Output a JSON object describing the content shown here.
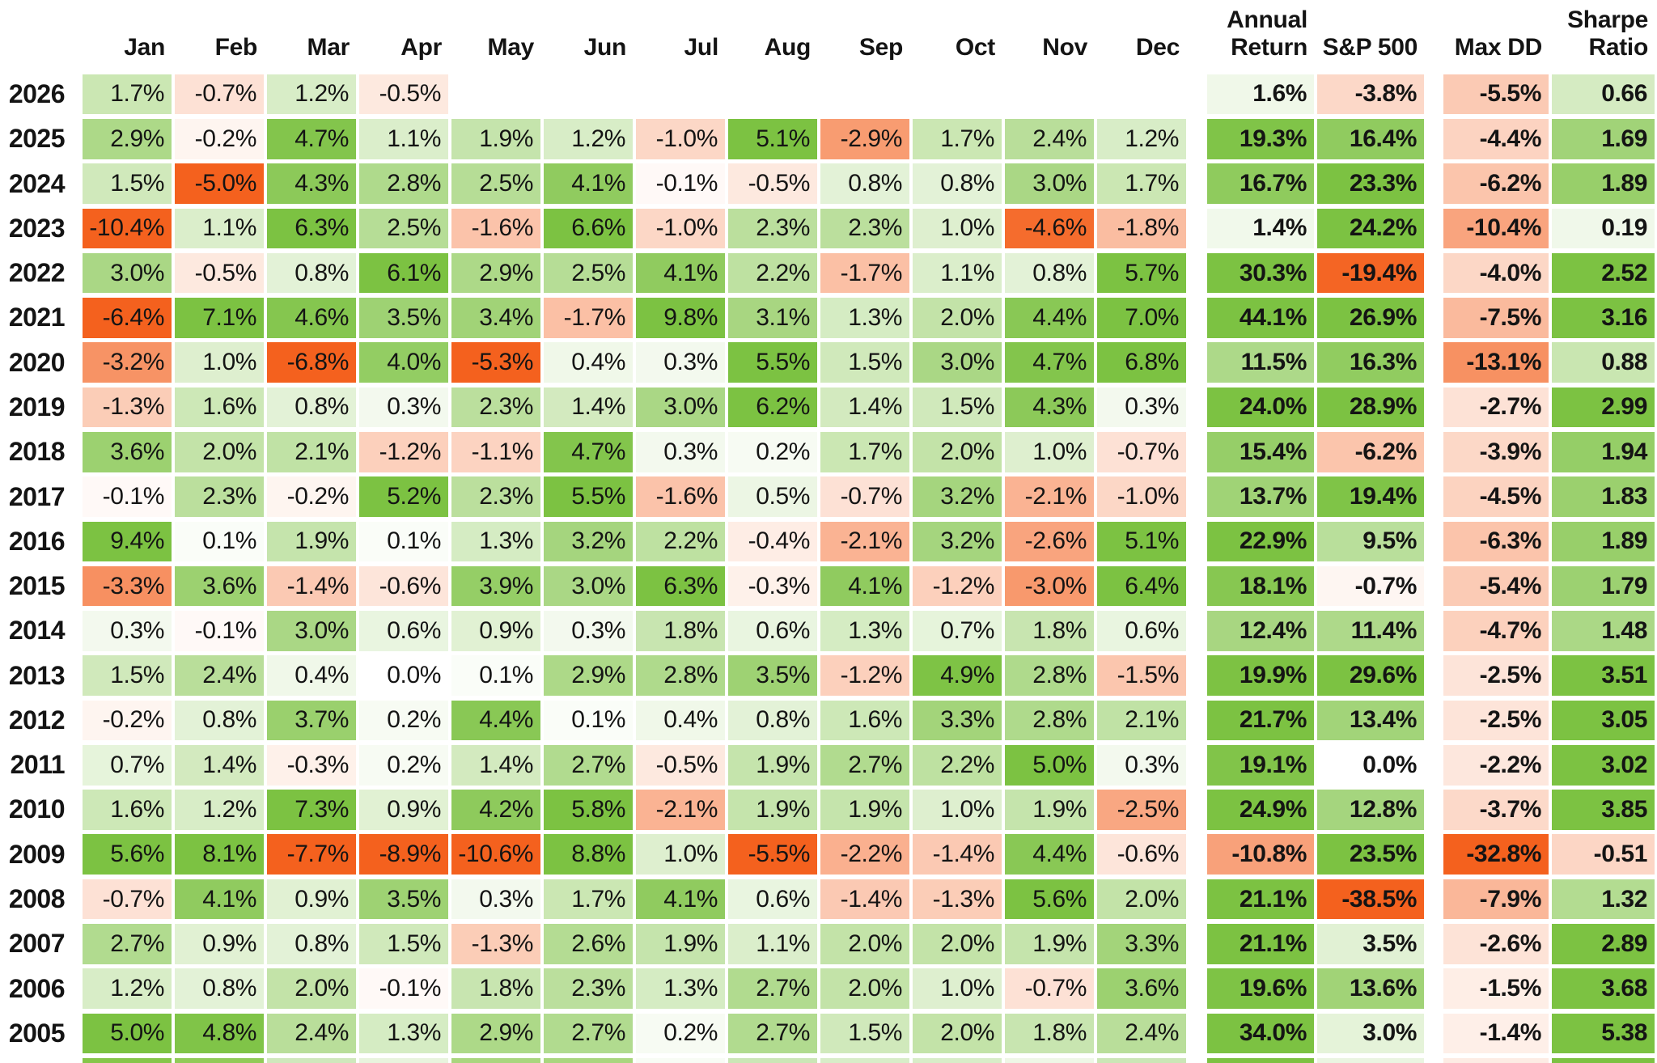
{
  "title_hidden": "",
  "colors": {
    "positive_full": "#7cc242",
    "negative_full": "#f4611e",
    "background": "#ffffff",
    "text": "#141414"
  },
  "scales": {
    "monthly": 5,
    "annual": 20,
    "sp500": 20,
    "max_dd": 20,
    "sharpe": 2.5,
    "gamma": 0.85
  },
  "chart_data": {
    "type": "heatmap",
    "title": "",
    "row_header": "year",
    "month_columns": [
      "Jan",
      "Feb",
      "Mar",
      "Apr",
      "May",
      "Jun",
      "Jul",
      "Aug",
      "Sep",
      "Oct",
      "Nov",
      "Dec"
    ],
    "summary_columns": [
      "Annual\nReturn",
      "S&P 500",
      "Max DD",
      "Sharpe\nRatio"
    ],
    "legend_position": "none",
    "grid": "white-gaps",
    "rows": [
      {
        "year": "2026",
        "monthly": [
          "1.7%",
          "-0.7%",
          "1.2%",
          "-0.5%",
          "",
          "",
          "",
          "",
          "",
          "",
          "",
          ""
        ],
        "annual_return": "1.6%",
        "sp500": "-3.8%",
        "max_dd": "-5.5%",
        "sharpe": "0.66"
      },
      {
        "year": "2025",
        "monthly": [
          "2.9%",
          "-0.2%",
          "4.7%",
          "1.1%",
          "1.9%",
          "1.2%",
          "-1.0%",
          "5.1%",
          "-2.9%",
          "1.7%",
          "2.4%",
          "1.2%"
        ],
        "annual_return": "19.3%",
        "sp500": "16.4%",
        "max_dd": "-4.4%",
        "sharpe": "1.69"
      },
      {
        "year": "2024",
        "monthly": [
          "1.5%",
          "-5.0%",
          "4.3%",
          "2.8%",
          "2.5%",
          "4.1%",
          "-0.1%",
          "-0.5%",
          "0.8%",
          "0.8%",
          "3.0%",
          "1.7%"
        ],
        "annual_return": "16.7%",
        "sp500": "23.3%",
        "max_dd": "-6.2%",
        "sharpe": "1.89"
      },
      {
        "year": "2023",
        "monthly": [
          "-10.4%",
          "1.1%",
          "6.3%",
          "2.5%",
          "-1.6%",
          "6.6%",
          "-1.0%",
          "2.3%",
          "2.3%",
          "1.0%",
          "-4.6%",
          "-1.8%"
        ],
        "annual_return": "1.4%",
        "sp500": "24.2%",
        "max_dd": "-10.4%",
        "sharpe": "0.19"
      },
      {
        "year": "2022",
        "monthly": [
          "3.0%",
          "-0.5%",
          "0.8%",
          "6.1%",
          "2.9%",
          "2.5%",
          "4.1%",
          "2.2%",
          "-1.7%",
          "1.1%",
          "0.8%",
          "5.7%"
        ],
        "annual_return": "30.3%",
        "sp500": "-19.4%",
        "max_dd": "-4.0%",
        "sharpe": "2.52"
      },
      {
        "year": "2021",
        "monthly": [
          "-6.4%",
          "7.1%",
          "4.6%",
          "3.5%",
          "3.4%",
          "-1.7%",
          "9.8%",
          "3.1%",
          "1.3%",
          "2.0%",
          "4.4%",
          "7.0%"
        ],
        "annual_return": "44.1%",
        "sp500": "26.9%",
        "max_dd": "-7.5%",
        "sharpe": "3.16"
      },
      {
        "year": "2020",
        "monthly": [
          "-3.2%",
          "1.0%",
          "-6.8%",
          "4.0%",
          "-5.3%",
          "0.4%",
          "0.3%",
          "5.5%",
          "1.5%",
          "3.0%",
          "4.7%",
          "6.8%"
        ],
        "annual_return": "11.5%",
        "sp500": "16.3%",
        "max_dd": "-13.1%",
        "sharpe": "0.88"
      },
      {
        "year": "2019",
        "monthly": [
          "-1.3%",
          "1.6%",
          "0.8%",
          "0.3%",
          "2.3%",
          "1.4%",
          "3.0%",
          "6.2%",
          "1.4%",
          "1.5%",
          "4.3%",
          "0.3%"
        ],
        "annual_return": "24.0%",
        "sp500": "28.9%",
        "max_dd": "-2.7%",
        "sharpe": "2.99"
      },
      {
        "year": "2018",
        "monthly": [
          "3.6%",
          "2.0%",
          "2.1%",
          "-1.2%",
          "-1.1%",
          "4.7%",
          "0.3%",
          "0.2%",
          "1.7%",
          "2.0%",
          "1.0%",
          "-0.7%"
        ],
        "annual_return": "15.4%",
        "sp500": "-6.2%",
        "max_dd": "-3.9%",
        "sharpe": "1.94"
      },
      {
        "year": "2017",
        "monthly": [
          "-0.1%",
          "2.3%",
          "-0.2%",
          "5.2%",
          "2.3%",
          "5.5%",
          "-1.6%",
          "0.5%",
          "-0.7%",
          "3.2%",
          "-2.1%",
          "-1.0%"
        ],
        "annual_return": "13.7%",
        "sp500": "19.4%",
        "max_dd": "-4.5%",
        "sharpe": "1.83"
      },
      {
        "year": "2016",
        "monthly": [
          "9.4%",
          "0.1%",
          "1.9%",
          "0.1%",
          "1.3%",
          "3.2%",
          "2.2%",
          "-0.4%",
          "-2.1%",
          "3.2%",
          "-2.6%",
          "5.1%"
        ],
        "annual_return": "22.9%",
        "sp500": "9.5%",
        "max_dd": "-6.3%",
        "sharpe": "1.89"
      },
      {
        "year": "2015",
        "monthly": [
          "-3.3%",
          "3.6%",
          "-1.4%",
          "-0.6%",
          "3.9%",
          "3.0%",
          "6.3%",
          "-0.3%",
          "4.1%",
          "-1.2%",
          "-3.0%",
          "6.4%"
        ],
        "annual_return": "18.1%",
        "sp500": "-0.7%",
        "max_dd": "-5.4%",
        "sharpe": "1.79"
      },
      {
        "year": "2014",
        "monthly": [
          "0.3%",
          "-0.1%",
          "3.0%",
          "0.6%",
          "0.9%",
          "0.3%",
          "1.8%",
          "0.6%",
          "1.3%",
          "0.7%",
          "1.8%",
          "0.6%"
        ],
        "annual_return": "12.4%",
        "sp500": "11.4%",
        "max_dd": "-4.7%",
        "sharpe": "1.48"
      },
      {
        "year": "2013",
        "monthly": [
          "1.5%",
          "2.4%",
          "0.4%",
          "0.0%",
          "0.1%",
          "2.9%",
          "2.8%",
          "3.5%",
          "-1.2%",
          "4.9%",
          "2.8%",
          "-1.5%"
        ],
        "annual_return": "19.9%",
        "sp500": "29.6%",
        "max_dd": "-2.5%",
        "sharpe": "3.51"
      },
      {
        "year": "2012",
        "monthly": [
          "-0.2%",
          "0.8%",
          "3.7%",
          "0.2%",
          "4.4%",
          "0.1%",
          "0.4%",
          "0.8%",
          "1.6%",
          "3.3%",
          "2.8%",
          "2.1%"
        ],
        "annual_return": "21.7%",
        "sp500": "13.4%",
        "max_dd": "-2.5%",
        "sharpe": "3.05"
      },
      {
        "year": "2011",
        "monthly": [
          "0.7%",
          "1.4%",
          "-0.3%",
          "0.2%",
          "1.4%",
          "2.7%",
          "-0.5%",
          "1.9%",
          "2.7%",
          "2.2%",
          "5.0%",
          "0.3%"
        ],
        "annual_return": "19.1%",
        "sp500": "0.0%",
        "max_dd": "-2.2%",
        "sharpe": "3.02"
      },
      {
        "year": "2010",
        "monthly": [
          "1.6%",
          "1.2%",
          "7.3%",
          "0.9%",
          "4.2%",
          "5.8%",
          "-2.1%",
          "1.9%",
          "1.9%",
          "1.0%",
          "1.9%",
          "-2.5%"
        ],
        "annual_return": "24.9%",
        "sp500": "12.8%",
        "max_dd": "-3.7%",
        "sharpe": "3.85"
      },
      {
        "year": "2009",
        "monthly": [
          "5.6%",
          "8.1%",
          "-7.7%",
          "-8.9%",
          "-10.6%",
          "8.8%",
          "1.0%",
          "-5.5%",
          "-2.2%",
          "-1.4%",
          "4.4%",
          "-0.6%"
        ],
        "annual_return": "-10.8%",
        "sp500": "23.5%",
        "max_dd": "-32.8%",
        "sharpe": "-0.51"
      },
      {
        "year": "2008",
        "monthly": [
          "-0.7%",
          "4.1%",
          "0.9%",
          "3.5%",
          "0.3%",
          "1.7%",
          "4.1%",
          "0.6%",
          "-1.4%",
          "-1.3%",
          "5.6%",
          "2.0%"
        ],
        "annual_return": "21.1%",
        "sp500": "-38.5%",
        "max_dd": "-7.9%",
        "sharpe": "1.32"
      },
      {
        "year": "2007",
        "monthly": [
          "2.7%",
          "0.9%",
          "0.8%",
          "1.5%",
          "-1.3%",
          "2.6%",
          "1.9%",
          "1.1%",
          "2.0%",
          "2.0%",
          "1.9%",
          "3.3%"
        ],
        "annual_return": "21.1%",
        "sp500": "3.5%",
        "max_dd": "-2.6%",
        "sharpe": "2.89"
      },
      {
        "year": "2006",
        "monthly": [
          "1.2%",
          "0.8%",
          "2.0%",
          "-0.1%",
          "1.8%",
          "2.3%",
          "1.3%",
          "2.7%",
          "2.0%",
          "1.0%",
          "-0.7%",
          "3.6%"
        ],
        "annual_return": "19.6%",
        "sp500": "13.6%",
        "max_dd": "-1.5%",
        "sharpe": "3.68"
      },
      {
        "year": "2005",
        "monthly": [
          "5.0%",
          "4.8%",
          "2.4%",
          "1.3%",
          "2.9%",
          "2.7%",
          "0.2%",
          "2.7%",
          "1.5%",
          "2.0%",
          "1.8%",
          "2.4%"
        ],
        "annual_return": "34.0%",
        "sp500": "3.0%",
        "max_dd": "-1.4%",
        "sharpe": "5.38"
      }
    ],
    "partial_bottom_row_colors": [
      "#85c649",
      "#90cb58",
      "#cfe8bc",
      "#e8f4dd",
      "#a9d67e",
      "#a9d67e",
      "#f8fcf5",
      "#cbe6b6",
      "#d8edc8",
      "#d8edc8",
      "#eef7e6",
      "#cbe6b6",
      "#7cc242",
      "#eaf5e1",
      "#fdece4",
      "#7cc242"
    ]
  }
}
